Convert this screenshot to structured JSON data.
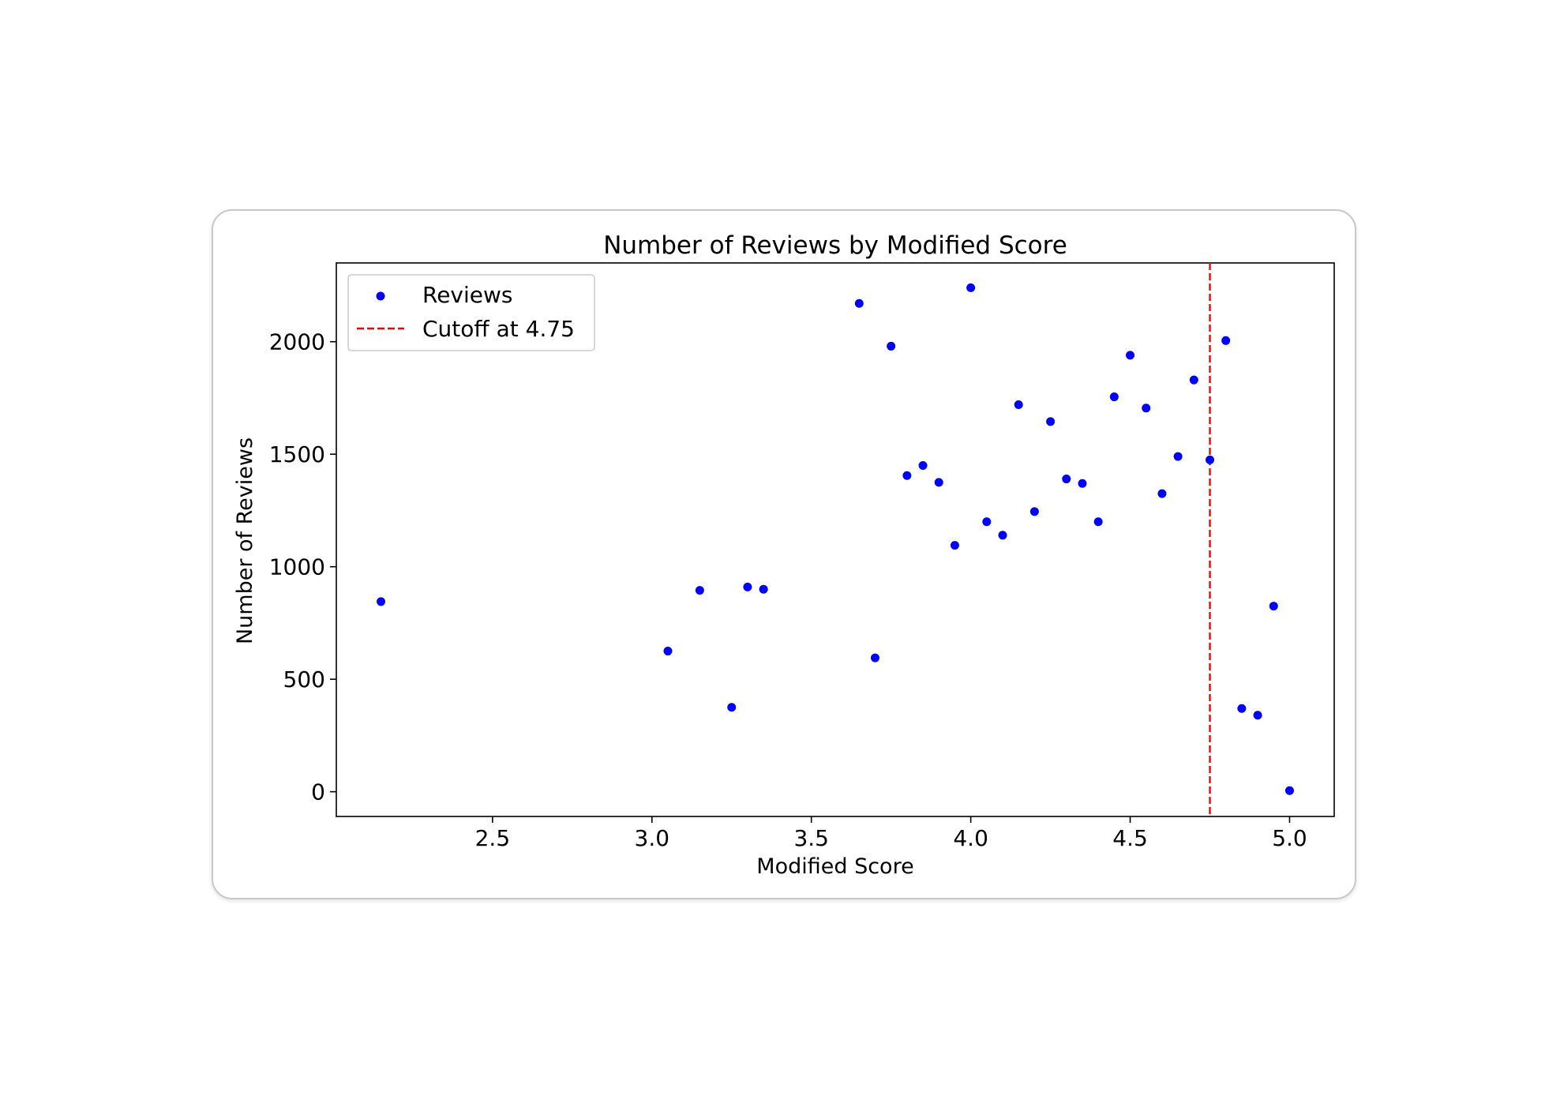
{
  "chart_data": {
    "type": "scatter",
    "title": "Number of Reviews by Modified Score",
    "xlabel": "Modified Score",
    "ylabel": "Number of Reviews",
    "xlim": [
      2.01,
      5.14
    ],
    "ylim": [
      -110,
      2350
    ],
    "xticks": [
      2.5,
      3.0,
      3.5,
      4.0,
      4.5,
      5.0
    ],
    "xtick_labels": [
      "2.5",
      "3.0",
      "3.5",
      "4.0",
      "4.5",
      "5.0"
    ],
    "yticks": [
      0,
      500,
      1000,
      1500,
      2000
    ],
    "ytick_labels": [
      "0",
      "500",
      "1000",
      "1500",
      "2000"
    ],
    "grid": false,
    "legend_position": "top-left",
    "series": [
      {
        "name": "Reviews",
        "color": "#0000ff",
        "x": [
          2.15,
          3.05,
          3.15,
          3.25,
          3.3,
          3.35,
          3.65,
          3.7,
          3.75,
          3.8,
          3.85,
          3.9,
          3.95,
          4.0,
          4.05,
          4.1,
          4.15,
          4.2,
          4.25,
          4.3,
          4.35,
          4.4,
          4.45,
          4.5,
          4.55,
          4.6,
          4.65,
          4.7,
          4.75,
          4.8,
          4.85,
          4.9,
          4.95,
          5.0
        ],
        "y": [
          845,
          625,
          895,
          375,
          910,
          900,
          2170,
          595,
          1980,
          1405,
          1450,
          1375,
          1095,
          2240,
          1200,
          1140,
          1720,
          1245,
          1645,
          1390,
          1370,
          1200,
          1755,
          1940,
          1705,
          1325,
          1490,
          1830,
          1475,
          2005,
          370,
          340,
          825,
          5
        ]
      }
    ],
    "reference_lines": [
      {
        "name": "Cutoff at 4.75",
        "orientation": "vertical",
        "x": 4.75,
        "color": "#ff0000",
        "style": "dashed"
      }
    ]
  }
}
